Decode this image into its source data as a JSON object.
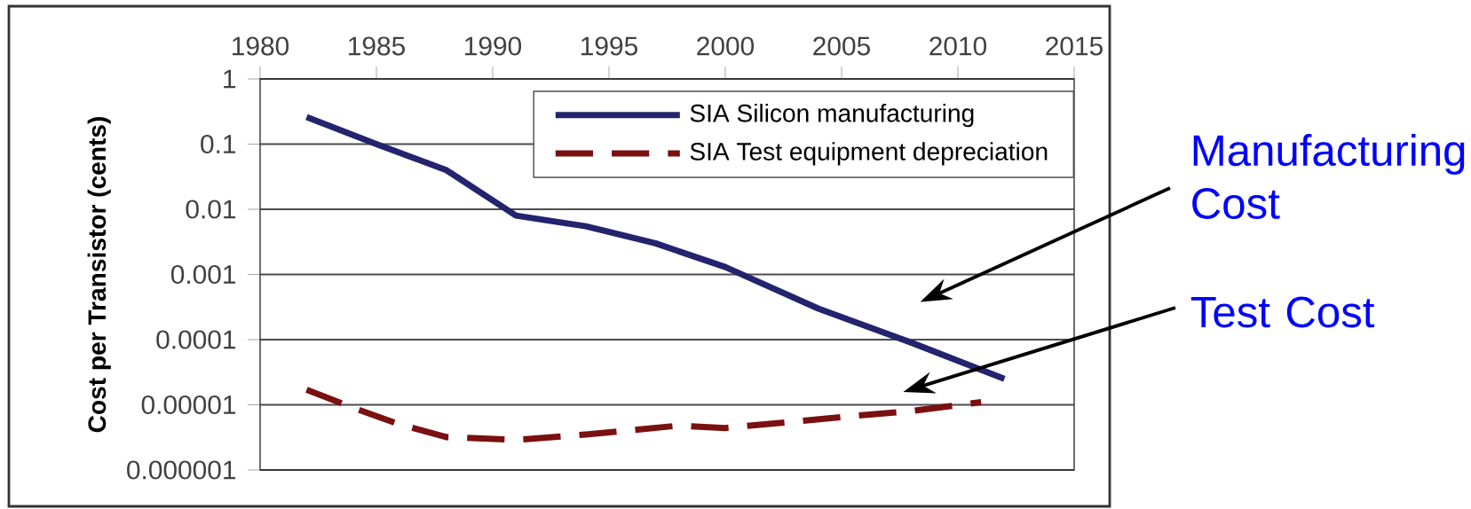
{
  "chart_data": {
    "type": "line",
    "ylabel": "Cost per Transistor (cents)",
    "x": [
      1982,
      1985,
      1988,
      1991,
      1994,
      1997,
      2000,
      2004,
      2008,
      2012
    ],
    "series": [
      {
        "name": "SIA Silicon manufacturing",
        "color": "#23236e",
        "line_style": "solid",
        "values": [
          0.26,
          0.1,
          0.04,
          0.008,
          0.0055,
          0.003,
          0.0013,
          0.0003,
          9e-05,
          2.5e-05
        ]
      },
      {
        "name": "SIA Test equipment depreciation",
        "color": "#7a1010",
        "line_style": "dashed",
        "x": [
          1982,
          1984,
          1986,
          1988,
          1991,
          1994,
          1998,
          2000,
          2005,
          2008,
          2011
        ],
        "values": [
          1.7e-05,
          9e-06,
          5e-06,
          3.2e-06,
          2.9e-06,
          3.5e-06,
          4.8e-06,
          4.4e-06,
          6.5e-06,
          8e-06,
          1.1e-05
        ]
      }
    ],
    "xlim": [
      1980,
      2015
    ],
    "xticks": [
      1980,
      1985,
      1990,
      1995,
      2000,
      2005,
      2010,
      2015
    ],
    "ylim": [
      1e-06,
      1
    ],
    "yticks": [
      {
        "value": 1e-06,
        "label": "0.000001"
      },
      {
        "value": 1e-05,
        "label": "0.00001"
      },
      {
        "value": 0.0001,
        "label": "0.0001"
      },
      {
        "value": 0.001,
        "label": "0.001"
      },
      {
        "value": 0.01,
        "label": "0.01"
      },
      {
        "value": 0.1,
        "label": "0.1"
      },
      {
        "value": 1,
        "label": "1"
      }
    ],
    "log": "y",
    "grid": "y",
    "legend": "top right",
    "marker": "none",
    "annotations": [
      "Manufacturing Cost",
      "Test Cost"
    ]
  }
}
